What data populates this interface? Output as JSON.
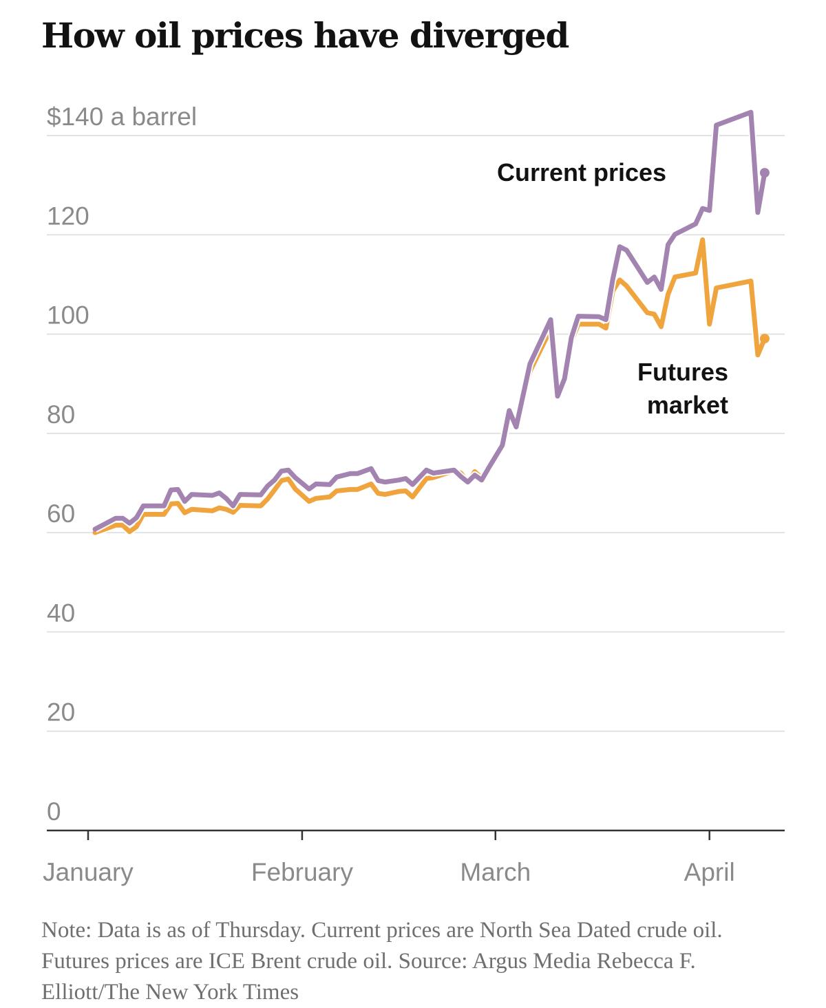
{
  "chart_data": {
    "type": "line",
    "title": "How oil prices have diverged",
    "ylabel": "$140 a barrel",
    "ylim": [
      0,
      140
    ],
    "yticks": [
      {
        "value": 140,
        "label": "$140 a barrel"
      },
      {
        "value": 120,
        "label": "120"
      },
      {
        "value": 100,
        "label": "100"
      },
      {
        "value": 80,
        "label": "80"
      },
      {
        "value": 60,
        "label": "60"
      },
      {
        "value": 40,
        "label": "40"
      },
      {
        "value": 20,
        "label": "20"
      },
      {
        "value": 0,
        "label": "0"
      }
    ],
    "xticks": [
      {
        "date": "Jan 1",
        "label": "January"
      },
      {
        "date": "Feb 1",
        "label": "February"
      },
      {
        "date": "Mar 1",
        "label": "March"
      },
      {
        "date": "Apr 1",
        "label": "April"
      }
    ],
    "grid": true,
    "legend": "inline labels",
    "x": [
      "Jan 2",
      "Jan 5",
      "Jan 6",
      "Jan 7",
      "Jan 8",
      "Jan 9",
      "Jan 12",
      "Jan 13",
      "Jan 14",
      "Jan 15",
      "Jan 16",
      "Jan 19",
      "Jan 20",
      "Jan 21",
      "Jan 22",
      "Jan 23",
      "Jan 26",
      "Jan 27",
      "Jan 28",
      "Jan 29",
      "Jan 30",
      "Jan 31",
      "Feb 2",
      "Feb 3",
      "Feb 5",
      "Feb 6",
      "Feb 8",
      "Feb 9",
      "Feb 11",
      "Feb 12",
      "Feb 13",
      "Feb 15",
      "Feb 16",
      "Feb 17",
      "Feb 19",
      "Feb 20",
      "Feb 23",
      "Feb 24",
      "Feb 25",
      "Feb 26",
      "Feb 27",
      "Feb 28",
      "Mar 2",
      "Mar 3",
      "Mar 4",
      "Mar 6",
      "Mar 9",
      "Mar 10",
      "Mar 11",
      "Mar 12",
      "Mar 13",
      "Mar 16",
      "Mar 17",
      "Mar 18",
      "Mar 19",
      "Mar 20",
      "Mar 23",
      "Mar 24",
      "Mar 25",
      "Mar 26",
      "Mar 27",
      "Mar 30",
      "Mar 31",
      "Apr 1",
      "Apr 2",
      "Apr 7",
      "Apr 8",
      "Apr 9"
    ],
    "series": [
      {
        "name": "Current prices",
        "color": "#a383b0",
        "values": [
          60.7,
          62.9,
          62.9,
          61.9,
          63.0,
          65.4,
          65.4,
          68.6,
          68.7,
          66.3,
          67.7,
          67.5,
          68.0,
          66.9,
          65.4,
          67.7,
          67.6,
          69.4,
          70.6,
          72.4,
          72.6,
          71.1,
          68.8,
          69.8,
          69.7,
          71.2,
          71.9,
          71.9,
          72.9,
          70.5,
          70.2,
          70.6,
          70.9,
          69.7,
          72.6,
          72.0,
          72.6,
          71.3,
          70.2,
          71.6,
          70.6,
          73.0,
          77.6,
          84.6,
          81.3,
          94.0,
          102.9,
          87.5,
          91.0,
          99.3,
          103.6,
          103.5,
          102.9,
          111.1,
          117.6,
          116.9,
          110.4,
          111.5,
          109.0,
          118.0,
          120.1,
          122.2,
          125.3,
          124.9,
          142.1,
          144.7,
          124.5,
          132.5
        ]
      },
      {
        "name": "Futures market",
        "color": "#f0a43e",
        "values": [
          60.0,
          61.5,
          61.5,
          60.2,
          61.2,
          63.7,
          63.7,
          65.8,
          65.9,
          64.0,
          64.7,
          64.4,
          65.0,
          64.7,
          64.1,
          65.5,
          65.4,
          66.8,
          68.6,
          70.5,
          70.8,
          68.8,
          66.3,
          66.9,
          67.2,
          68.4,
          68.7,
          68.7,
          69.8,
          67.9,
          67.7,
          68.3,
          68.4,
          67.2,
          70.9,
          71.1,
          72.5,
          72.0,
          70.2,
          72.3,
          71.0,
          73.5,
          77.8,
          84.0,
          81.0,
          92.5,
          101.0,
          87.5,
          91.0,
          98.5,
          102.0,
          102.0,
          101.2,
          108.7,
          110.9,
          109.7,
          104.3,
          104.0,
          101.5,
          108.0,
          111.5,
          112.3,
          119.0,
          102.0,
          109.3,
          110.7,
          95.8,
          99.1
        ]
      }
    ],
    "labels": {
      "current": "Current prices",
      "futures_line1": "Futures",
      "futures_line2": "market"
    },
    "note": "Note: Data is as of Thursday. Current prices are North Sea Dated crude oil. Futures prices are ICE Brent crude oil.  Source: Argus Media   Rebecca F. Elliott/The New York Times"
  }
}
